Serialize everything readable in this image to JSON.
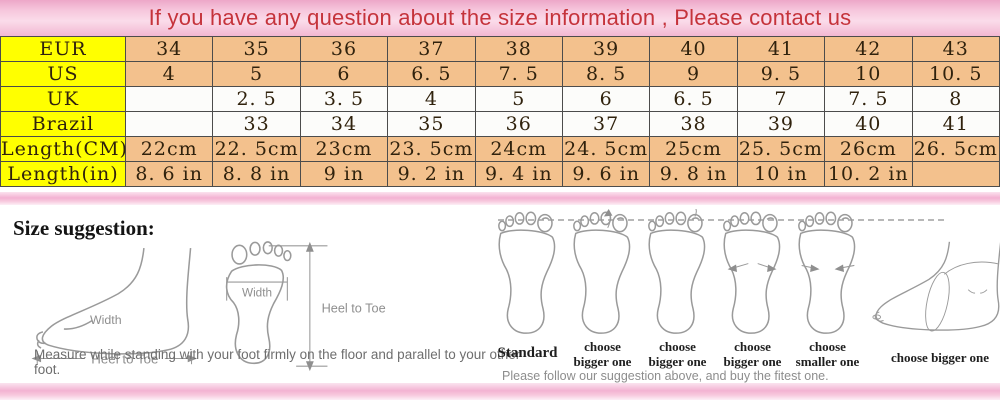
{
  "banner": {
    "text": "If you have any question about the size information , Please contact us"
  },
  "size_table": {
    "rows": [
      {
        "label": "EUR",
        "tone": "peach",
        "values": [
          "34",
          "35",
          "36",
          "37",
          "38",
          "39",
          "40",
          "41",
          "42",
          "43"
        ]
      },
      {
        "label": "US",
        "tone": "peach",
        "values": [
          "4",
          "5",
          "6",
          "6. 5",
          "7. 5",
          "8. 5",
          "9",
          "9. 5",
          "10",
          "10. 5"
        ]
      },
      {
        "label": "UK",
        "tone": "white",
        "values": [
          "",
          "2. 5",
          "3. 5",
          "4",
          "5",
          "6",
          "6. 5",
          "7",
          "7. 5",
          "8"
        ]
      },
      {
        "label": "Brazil",
        "tone": "white",
        "values": [
          "",
          "33",
          "34",
          "35",
          "36",
          "37",
          "38",
          "39",
          "40",
          "41"
        ]
      },
      {
        "label": "Length(CM)",
        "tone": "peach",
        "values": [
          "22cm",
          "22. 5cm",
          "23cm",
          "23. 5cm",
          "24cm",
          "24. 5cm",
          "25cm",
          "25. 5cm",
          "26cm",
          "26. 5cm"
        ]
      },
      {
        "label": "Length(in)",
        "tone": "peach",
        "values": [
          "8. 6 in",
          "8. 8 in",
          "9 in",
          "9. 2 in",
          "9. 4 in",
          "9. 6 in",
          "9. 8 in",
          "10 in",
          "10. 2 in",
          ""
        ]
      }
    ]
  },
  "suggestion": {
    "heading": "Size suggestion:",
    "measure": {
      "side_width_label": "Width",
      "side_heel_to_toe_label": "Heel to Toe",
      "print_width_label": "Width",
      "print_heel_to_toe_label": "Heel to Toe",
      "caption": "Measure while standing with your foot firmly on the floor and parallel to your other foot."
    },
    "advice": {
      "feet": [
        {
          "label": "Standard"
        },
        {
          "label": "choose bigger one"
        },
        {
          "label": "choose bigger one"
        },
        {
          "label": "choose bigger one"
        },
        {
          "label": "choose smaller one"
        },
        {
          "label": "choose bigger one"
        }
      ],
      "caption": "Please follow our suggestion above, and buy the fitest one."
    }
  },
  "colors": {
    "banner_text_red": "#c5333b",
    "banner_pink": "#f2b7d2",
    "cell_yellow": "#ffff00",
    "cell_peach": "#f3c18d",
    "divider_pink": "#f3b2d2"
  }
}
